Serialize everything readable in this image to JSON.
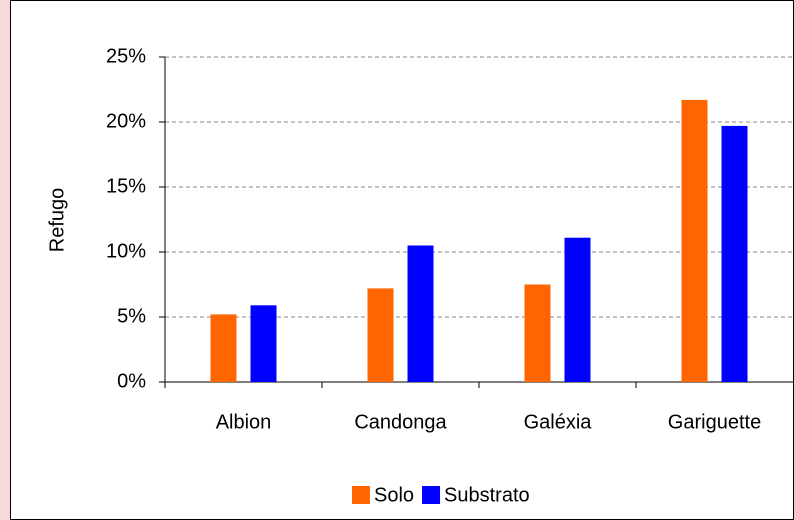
{
  "chart_data": {
    "type": "bar",
    "y_label": "Refugo",
    "categories": [
      "Albion",
      "Candonga",
      "Galéxia",
      "Gariguette"
    ],
    "series": [
      {
        "name": "Solo",
        "color": "#ff6600",
        "values": [
          5.2,
          7.2,
          7.5,
          21.7
        ]
      },
      {
        "name": "Substrato",
        "color": "#0000ff",
        "values": [
          5.9,
          10.5,
          11.1,
          19.7
        ]
      }
    ],
    "ylim": [
      0,
      25
    ],
    "yticks": [
      {
        "value": 0,
        "label": "0%"
      },
      {
        "value": 5,
        "label": "5%"
      },
      {
        "value": 10,
        "label": "10%"
      },
      {
        "value": 15,
        "label": "15%"
      },
      {
        "value": 20,
        "label": "20%"
      },
      {
        "value": 25,
        "label": "25%"
      }
    ],
    "grid": true,
    "legend": "bottom"
  }
}
